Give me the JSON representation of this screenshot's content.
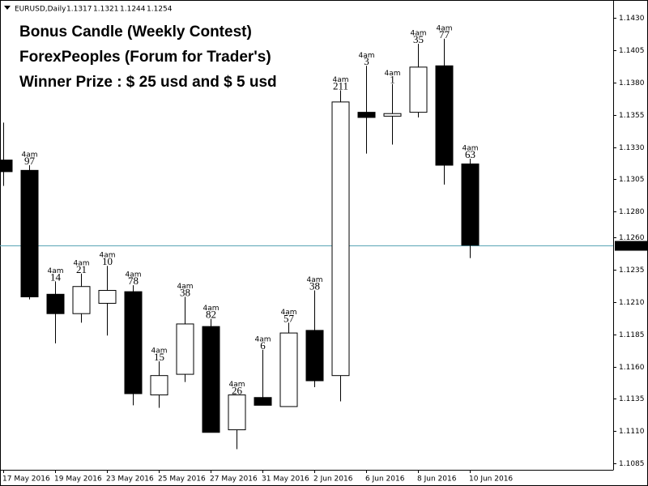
{
  "chart_data": {
    "type": "candlestick",
    "symbol": "EURUSD,Daily",
    "header_values": [
      1.1317,
      1.1321,
      1.1244,
      1.1254
    ],
    "texts": [
      {
        "text": "Bonus Candle (Weekly Contest)",
        "color": "#0a14e6"
      },
      {
        "text": "ForexPeoples (Forum for Trader's)",
        "color": "#0a14e6"
      },
      {
        "text": "Winner Prize : $ 25 usd and $ 5 usd",
        "color": "#ff0000"
      }
    ],
    "categories": [
      "17 May 2016",
      null,
      "19 May 2016",
      null,
      "23 May 2016",
      null,
      "25 May 2016",
      null,
      "27 May 2016",
      null,
      "31 May 2016",
      null,
      "2 Jun 2016",
      null,
      "6 Jun 2016",
      null,
      "8 Jun 2016",
      null,
      "10 Jun 2016"
    ],
    "open": [
      1.132,
      1.1312,
      1.1216,
      1.1201,
      1.1209,
      1.1218,
      1.1138,
      1.1154,
      1.1191,
      1.1111,
      1.1136,
      1.1129,
      1.1188,
      1.1153,
      1.1357,
      1.1354,
      1.1357,
      1.1393,
      1.1317
    ],
    "high": [
      1.1349,
      1.1316,
      1.1226,
      1.1232,
      1.1238,
      1.1223,
      1.1164,
      1.1214,
      1.1197,
      1.1138,
      1.1173,
      1.1194,
      1.1219,
      1.1374,
      1.1393,
      1.1379,
      1.141,
      1.1414,
      1.1321
    ],
    "low": [
      1.13,
      1.1212,
      1.1178,
      1.1194,
      1.1184,
      1.113,
      1.1128,
      1.1148,
      1.1109,
      1.1096,
      1.113,
      1.1129,
      1.1144,
      1.1133,
      1.1325,
      1.1332,
      1.1353,
      1.1301,
      1.1244
    ],
    "close": [
      1.1311,
      1.1214,
      1.1201,
      1.1222,
      1.1219,
      1.1139,
      1.1153,
      1.1193,
      1.1109,
      1.1138,
      1.113,
      1.1186,
      1.1149,
      1.1365,
      1.1353,
      1.1356,
      1.1392,
      1.1316,
      1.1254
    ],
    "annotation_times": [
      null,
      "4am",
      "4am",
      "4am",
      "4am",
      "4am",
      "4am",
      "4am",
      "4am",
      "4am",
      "4am",
      "4am",
      "4am",
      "4am",
      "4am",
      "4am",
      "4am",
      "4am",
      "4am"
    ],
    "annotation_values": [
      null,
      97,
      14,
      21,
      10,
      78,
      15,
      38,
      82,
      26,
      6,
      57,
      38,
      211,
      3,
      1,
      35,
      77,
      63
    ],
    "annotation_colors": [
      null,
      "#ff0000",
      "#0000cc",
      "#0000cc",
      "#0000cc",
      "#ff0000",
      "#0000cc",
      "#ff0000",
      "#ff0000",
      "#0000cc",
      "#0000cc",
      "#ff0000",
      "#ff0000",
      "#ff0000",
      "#0000cc",
      "#0000cc",
      "#ff0000",
      "#ff0000",
      "#ff0000"
    ],
    "current_price": 1.1254,
    "current_price_color": "#5aa5b5",
    "bull_color": "#ffffff",
    "bear_color": "#000000",
    "ylim": [
      1.108,
      1.1444
    ],
    "yticks": [
      {
        "value": 1.143,
        "label": "1.1430"
      },
      1.1405,
      {
        "value": 1.138,
        "label": "1.1380"
      },
      1.1355,
      {
        "value": 1.133,
        "label": "1.1330"
      },
      1.1305,
      {
        "value": 1.128,
        "label": "1.1280"
      },
      {
        "value": 1.126,
        "label": "1.1260"
      },
      1.1235,
      {
        "value": 1.121,
        "label": "1.1210"
      },
      1.1185,
      {
        "value": 1.116,
        "label": "1.1160"
      },
      1.1135,
      {
        "value": 1.111,
        "label": "1.1110"
      },
      1.1085
    ]
  }
}
